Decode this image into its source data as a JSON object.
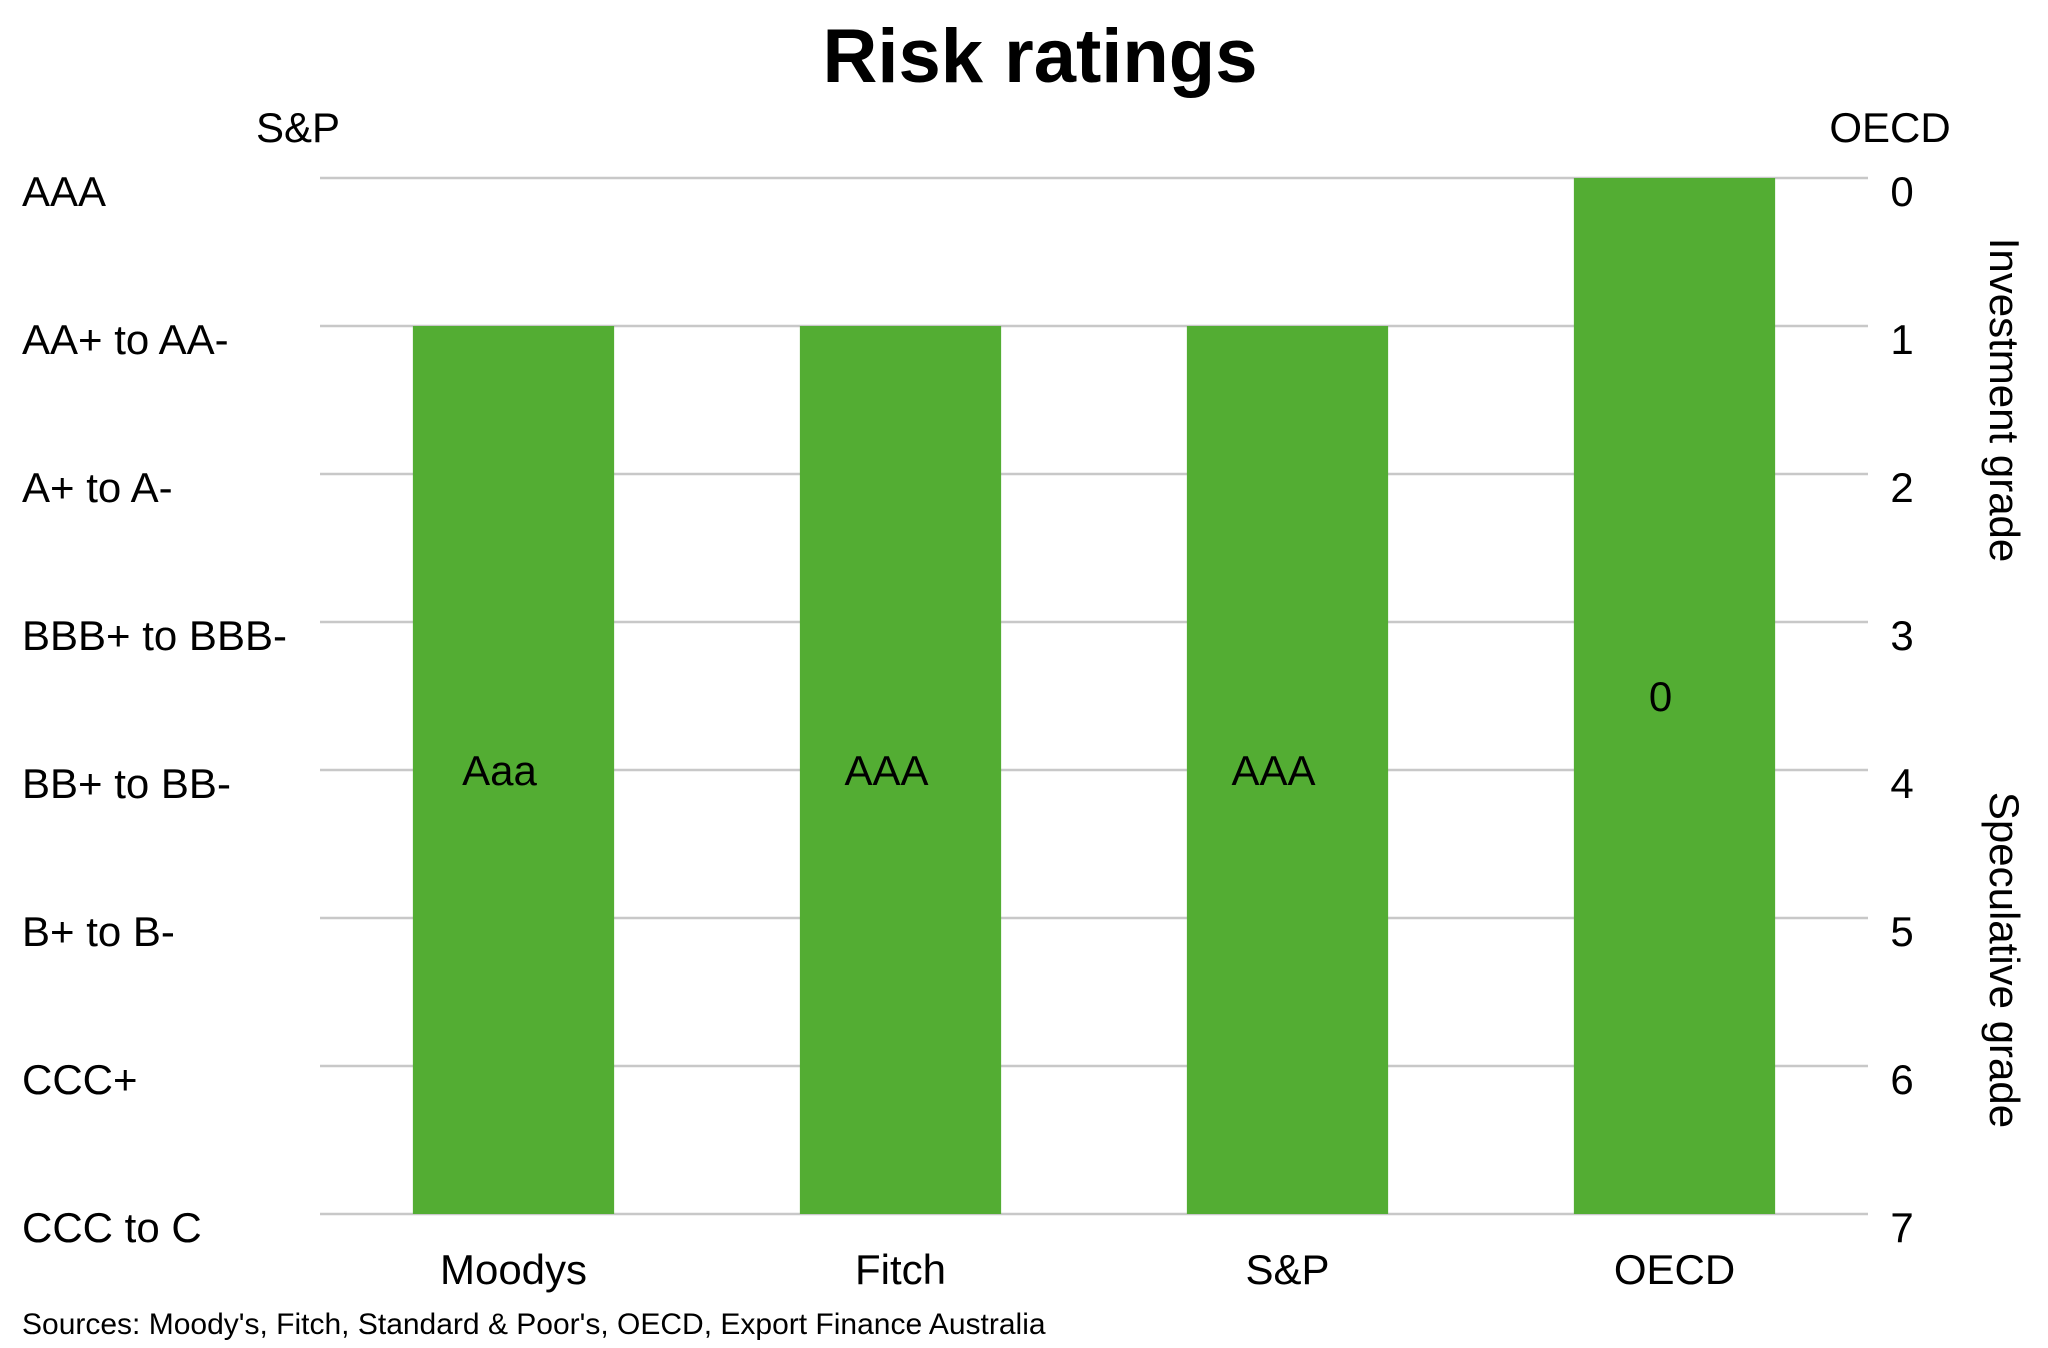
{
  "chart_data": {
    "type": "bar",
    "title": "Risk ratings",
    "left_axis_title": "S&P",
    "right_axis_title": "OECD",
    "left_tick_labels": [
      "AAA",
      "AA+ to AA-",
      "A+ to A-",
      "BBB+ to BBB-",
      "BB+ to BB-",
      "B+ to B-",
      "CCC+",
      "CCC to C"
    ],
    "right_tick_labels": [
      "0",
      "1",
      "2",
      "3",
      "4",
      "5",
      "6",
      "7"
    ],
    "ylim": [
      0,
      7
    ],
    "y_inverted": true,
    "categories": [
      "Moodys",
      "Fitch",
      "S&P",
      "OECD"
    ],
    "values": [
      1,
      1,
      1,
      0
    ],
    "data_labels": [
      "Aaa",
      "AAA",
      "AAA",
      "0"
    ],
    "bar_color": "#53ad33",
    "grid": true,
    "right_axis_annotations": [
      "Investment grade",
      "Speculative grade"
    ],
    "source": "Sources: Moody's, Fitch, Standard & Poor's, OECD, Export Finance Australia"
  }
}
